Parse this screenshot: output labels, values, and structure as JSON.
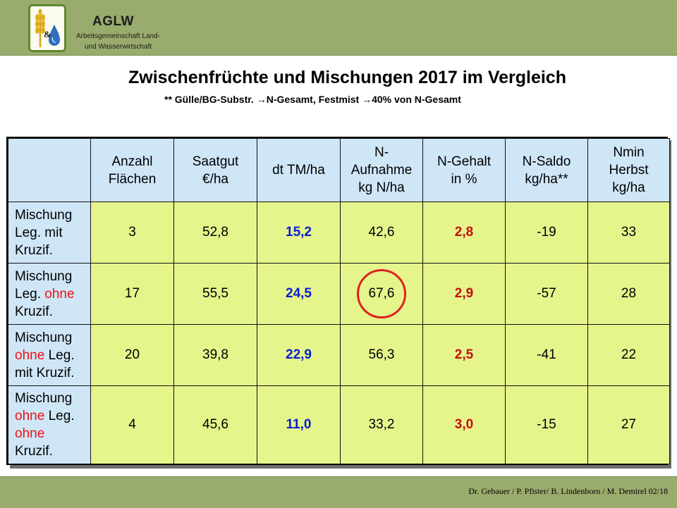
{
  "header": {
    "logo_title": "AGLW",
    "logo_sub1": "Arbeitsgemeinschaft Land-",
    "logo_sub2": "und Wasserwirtschaft",
    "logo_amp": "&"
  },
  "slide": {
    "title": "Zwischenfrüchte und Mischungen 2017 im Vergleich",
    "subtitle_a": "**  Gülle/BG-Substr. ",
    "subtitle_b": "N-Gesamt, Festmist ",
    "subtitle_c": "40% von N-Gesamt"
  },
  "table": {
    "headers": [
      {
        "line1": "",
        "line2": "",
        "line3": ""
      },
      {
        "line1": "Anzahl",
        "line2": "Flächen",
        "line3": ""
      },
      {
        "line1": "Saatgut",
        "line2": "€/ha",
        "line3": ""
      },
      {
        "line1": "dt TM/ha",
        "line2": "",
        "line3": ""
      },
      {
        "line1": "N-",
        "line2": "Aufnahme",
        "line3": "kg N/ha"
      },
      {
        "line1": "N-Gehalt",
        "line2": "in %",
        "line3": ""
      },
      {
        "line1": "N-Saldo",
        "line2": "kg/ha**",
        "line3": ""
      },
      {
        "line1": "Nmin",
        "line2": "Herbst",
        "line3": "kg/ha"
      }
    ],
    "rows": [
      {
        "label": {
          "w1": "Mischung",
          "w2": "Leg.",
          "w3": "mit",
          "w4": "Kruzif.",
          "w5": ""
        },
        "anzahl": "3",
        "saatgut": "52,8",
        "tm": "15,2",
        "n_aufnahme": "42,6",
        "n_gehalt": "2,8",
        "n_saldo": "-19",
        "nmin": "33"
      },
      {
        "label": {
          "w1": "Mischung",
          "w2": "Leg.",
          "w3": "ohne",
          "w4": "Kruzif.",
          "w5": ""
        },
        "anzahl": "17",
        "saatgut": "55,5",
        "tm": "24,5",
        "n_aufnahme": "67,6",
        "n_gehalt": "2,9",
        "n_saldo": "-57",
        "nmin": "28"
      },
      {
        "label": {
          "w1": "Mischung",
          "w2": "ohne",
          "w3": "Leg.",
          "w4": "mit Kruzif.",
          "w5": ""
        },
        "anzahl": "20",
        "saatgut": "39,8",
        "tm": "22,9",
        "n_aufnahme": "56,3",
        "n_gehalt": "2,5",
        "n_saldo": "-41",
        "nmin": "22"
      },
      {
        "label": {
          "w1": "Mischung",
          "w2": "ohne",
          "w3": "Leg.",
          "w4": "ohne",
          "w5": "Kruzif."
        },
        "anzahl": "4",
        "saatgut": "45,6",
        "tm": "11,0",
        "n_aufnahme": "33,2",
        "n_gehalt": "3,0",
        "n_saldo": "-15",
        "nmin": "27"
      }
    ]
  },
  "footer": {
    "credits": "Dr. Gebauer / P. Pfister/ B. Lindenborn / M. Demirel 02/18"
  },
  "colors": {
    "header_bg": "#9aac6d",
    "header_cell_bg": "#cfe6f7",
    "data_cell_bg": "#e6f48c",
    "highlight_blue": "#0a1fd1",
    "highlight_red": "#c50f0f",
    "circle": "#e02020"
  },
  "icons": {
    "logo": "wheat-drop-logo-icon",
    "arrow": "right-arrow-icon"
  }
}
